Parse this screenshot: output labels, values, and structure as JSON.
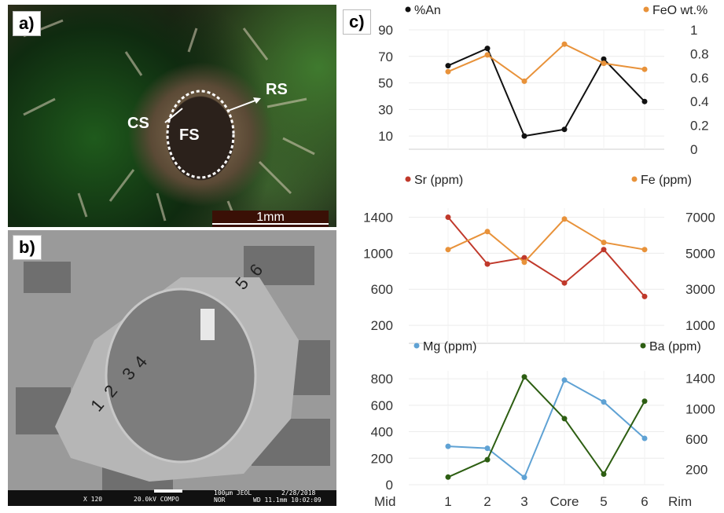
{
  "panel_a": {
    "label": "a)",
    "annotations": {
      "cs": "CS",
      "fs": "FS",
      "rs": "RS"
    },
    "scalebar": "1mm"
  },
  "panel_b": {
    "label": "b)",
    "spot_labels": {
      "p1": "1",
      "p2": "2",
      "p3": "3",
      "p4": "4",
      "p5": "5",
      "p6": "6"
    },
    "footer": {
      "mag": "X 120",
      "kv": "20.0kV COMPO",
      "scale": "100µm JEOL",
      "date": "2/28/2018",
      "mode": "NOR",
      "wd": "WD 11.1mm 10:02:09"
    }
  },
  "panel_c": {
    "label": "c)"
  },
  "colors": {
    "an": "#111111",
    "feo": "#e8923a",
    "sr": "#c0392b",
    "fe": "#e8923a",
    "mg": "#5fa2d4",
    "ba": "#2d5e12"
  },
  "chart_data": [
    {
      "type": "line",
      "categories": [
        "1",
        "2",
        "3",
        "Core",
        "5",
        "6"
      ],
      "series": [
        {
          "name": "%An",
          "axis": "left",
          "values": [
            63,
            76,
            10,
            15,
            68,
            36
          ]
        },
        {
          "name": "FeO wt.%",
          "axis": "right",
          "values": [
            0.65,
            0.79,
            0.57,
            0.88,
            0.72,
            0.67
          ]
        }
      ],
      "yticks_left": [
        "10",
        "30",
        "50",
        "70",
        "90"
      ],
      "yticks_right": [
        "0",
        "0.2",
        "0.4",
        "0.6",
        "0.8",
        "1"
      ],
      "ylim_left": [
        0,
        90
      ],
      "ylim_right": [
        0,
        1
      ]
    },
    {
      "type": "line",
      "categories": [
        "1",
        "2",
        "3",
        "Core",
        "5",
        "6"
      ],
      "series": [
        {
          "name": "Sr (ppm)",
          "axis": "left",
          "values": [
            1400,
            880,
            950,
            670,
            1040,
            520
          ]
        },
        {
          "name": "Fe (ppm)",
          "axis": "right",
          "values": [
            5200,
            6200,
            4500,
            6900,
            5600,
            5200
          ]
        }
      ],
      "yticks_left": [
        "200",
        "600",
        "1000",
        "1400"
      ],
      "yticks_right": [
        "1000",
        "3000",
        "5000",
        "7000"
      ],
      "ylim_left": [
        0,
        1500
      ],
      "ylim_right": [
        0,
        7500
      ]
    },
    {
      "type": "line",
      "categories": [
        "1",
        "2",
        "3",
        "Core",
        "5",
        "6"
      ],
      "x_end_labels": [
        "Mid",
        "Rim"
      ],
      "series": [
        {
          "name": "Mg (ppm)",
          "axis": "left",
          "values": [
            290,
            275,
            55,
            790,
            625,
            350
          ]
        },
        {
          "name": "Ba (ppm)",
          "axis": "right",
          "values": [
            100,
            330,
            1420,
            870,
            140,
            1100
          ]
        }
      ],
      "yticks_left": [
        "0",
        "200",
        "400",
        "600",
        "800"
      ],
      "yticks_right": [
        "200",
        "600",
        "1000",
        "1400"
      ],
      "ylim_left": [
        0,
        860
      ],
      "ylim_right": [
        0,
        1500
      ]
    }
  ]
}
